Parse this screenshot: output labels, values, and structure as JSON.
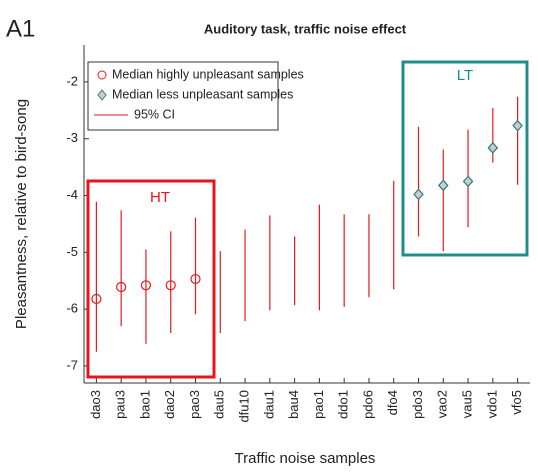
{
  "chart_data": {
    "type": "errorbar",
    "panel_label": "A1",
    "title": "Auditory task, traffic noise effect",
    "xlabel": "Traffic noise samples",
    "ylabel": "Pleasantness, relative to bird-song",
    "categories": [
      "dao3",
      "pau3",
      "bao1",
      "dao2",
      "pao3",
      "dau5",
      "dfu10",
      "dau1",
      "bau4",
      "pao1",
      "ddo1",
      "pdo6",
      "dfo4",
      "pdo3",
      "vao2",
      "vau5",
      "vdo1",
      "vfo5"
    ],
    "series": [
      {
        "name": "Median highly unpleasant samples",
        "marker": "circle",
        "color": "#e41a1c",
        "values": [
          -5.82,
          -5.61,
          -5.58,
          -5.58,
          -5.47,
          null,
          null,
          null,
          null,
          null,
          null,
          null,
          null,
          null,
          null,
          null,
          null,
          null
        ]
      },
      {
        "name": "Median less unpleasant samples",
        "marker": "diamond",
        "color": "#2e7d7d",
        "values": [
          null,
          null,
          null,
          null,
          null,
          null,
          null,
          null,
          null,
          null,
          null,
          null,
          null,
          -3.98,
          -3.82,
          -3.75,
          -3.16,
          -2.77
        ]
      }
    ],
    "ci": {
      "name": "95% CI",
      "color": "#e41a1c",
      "lower": [
        -6.75,
        -6.3,
        -6.61,
        -6.42,
        -6.09,
        -6.42,
        -6.21,
        -6.02,
        -5.93,
        -6.02,
        -5.96,
        -5.79,
        -5.65,
        -4.72,
        -4.98,
        -4.56,
        -3.42,
        -3.81
      ],
      "upper": [
        -4.11,
        -4.26,
        -4.95,
        -4.63,
        -4.39,
        -4.98,
        -4.6,
        -4.35,
        -4.72,
        -4.16,
        -4.33,
        -4.33,
        -3.74,
        -2.79,
        -3.19,
        -2.84,
        -2.46,
        -2.26
      ]
    },
    "annotations": [
      {
        "text": "HT",
        "color": "#e8141c"
      },
      {
        "text": "LT",
        "color": "#1f8c8c"
      }
    ],
    "ylim": [
      -7.3,
      -1.35
    ],
    "yticks": [
      -7,
      -6,
      -5,
      -4,
      -3,
      -2
    ],
    "legend": "upper left"
  }
}
